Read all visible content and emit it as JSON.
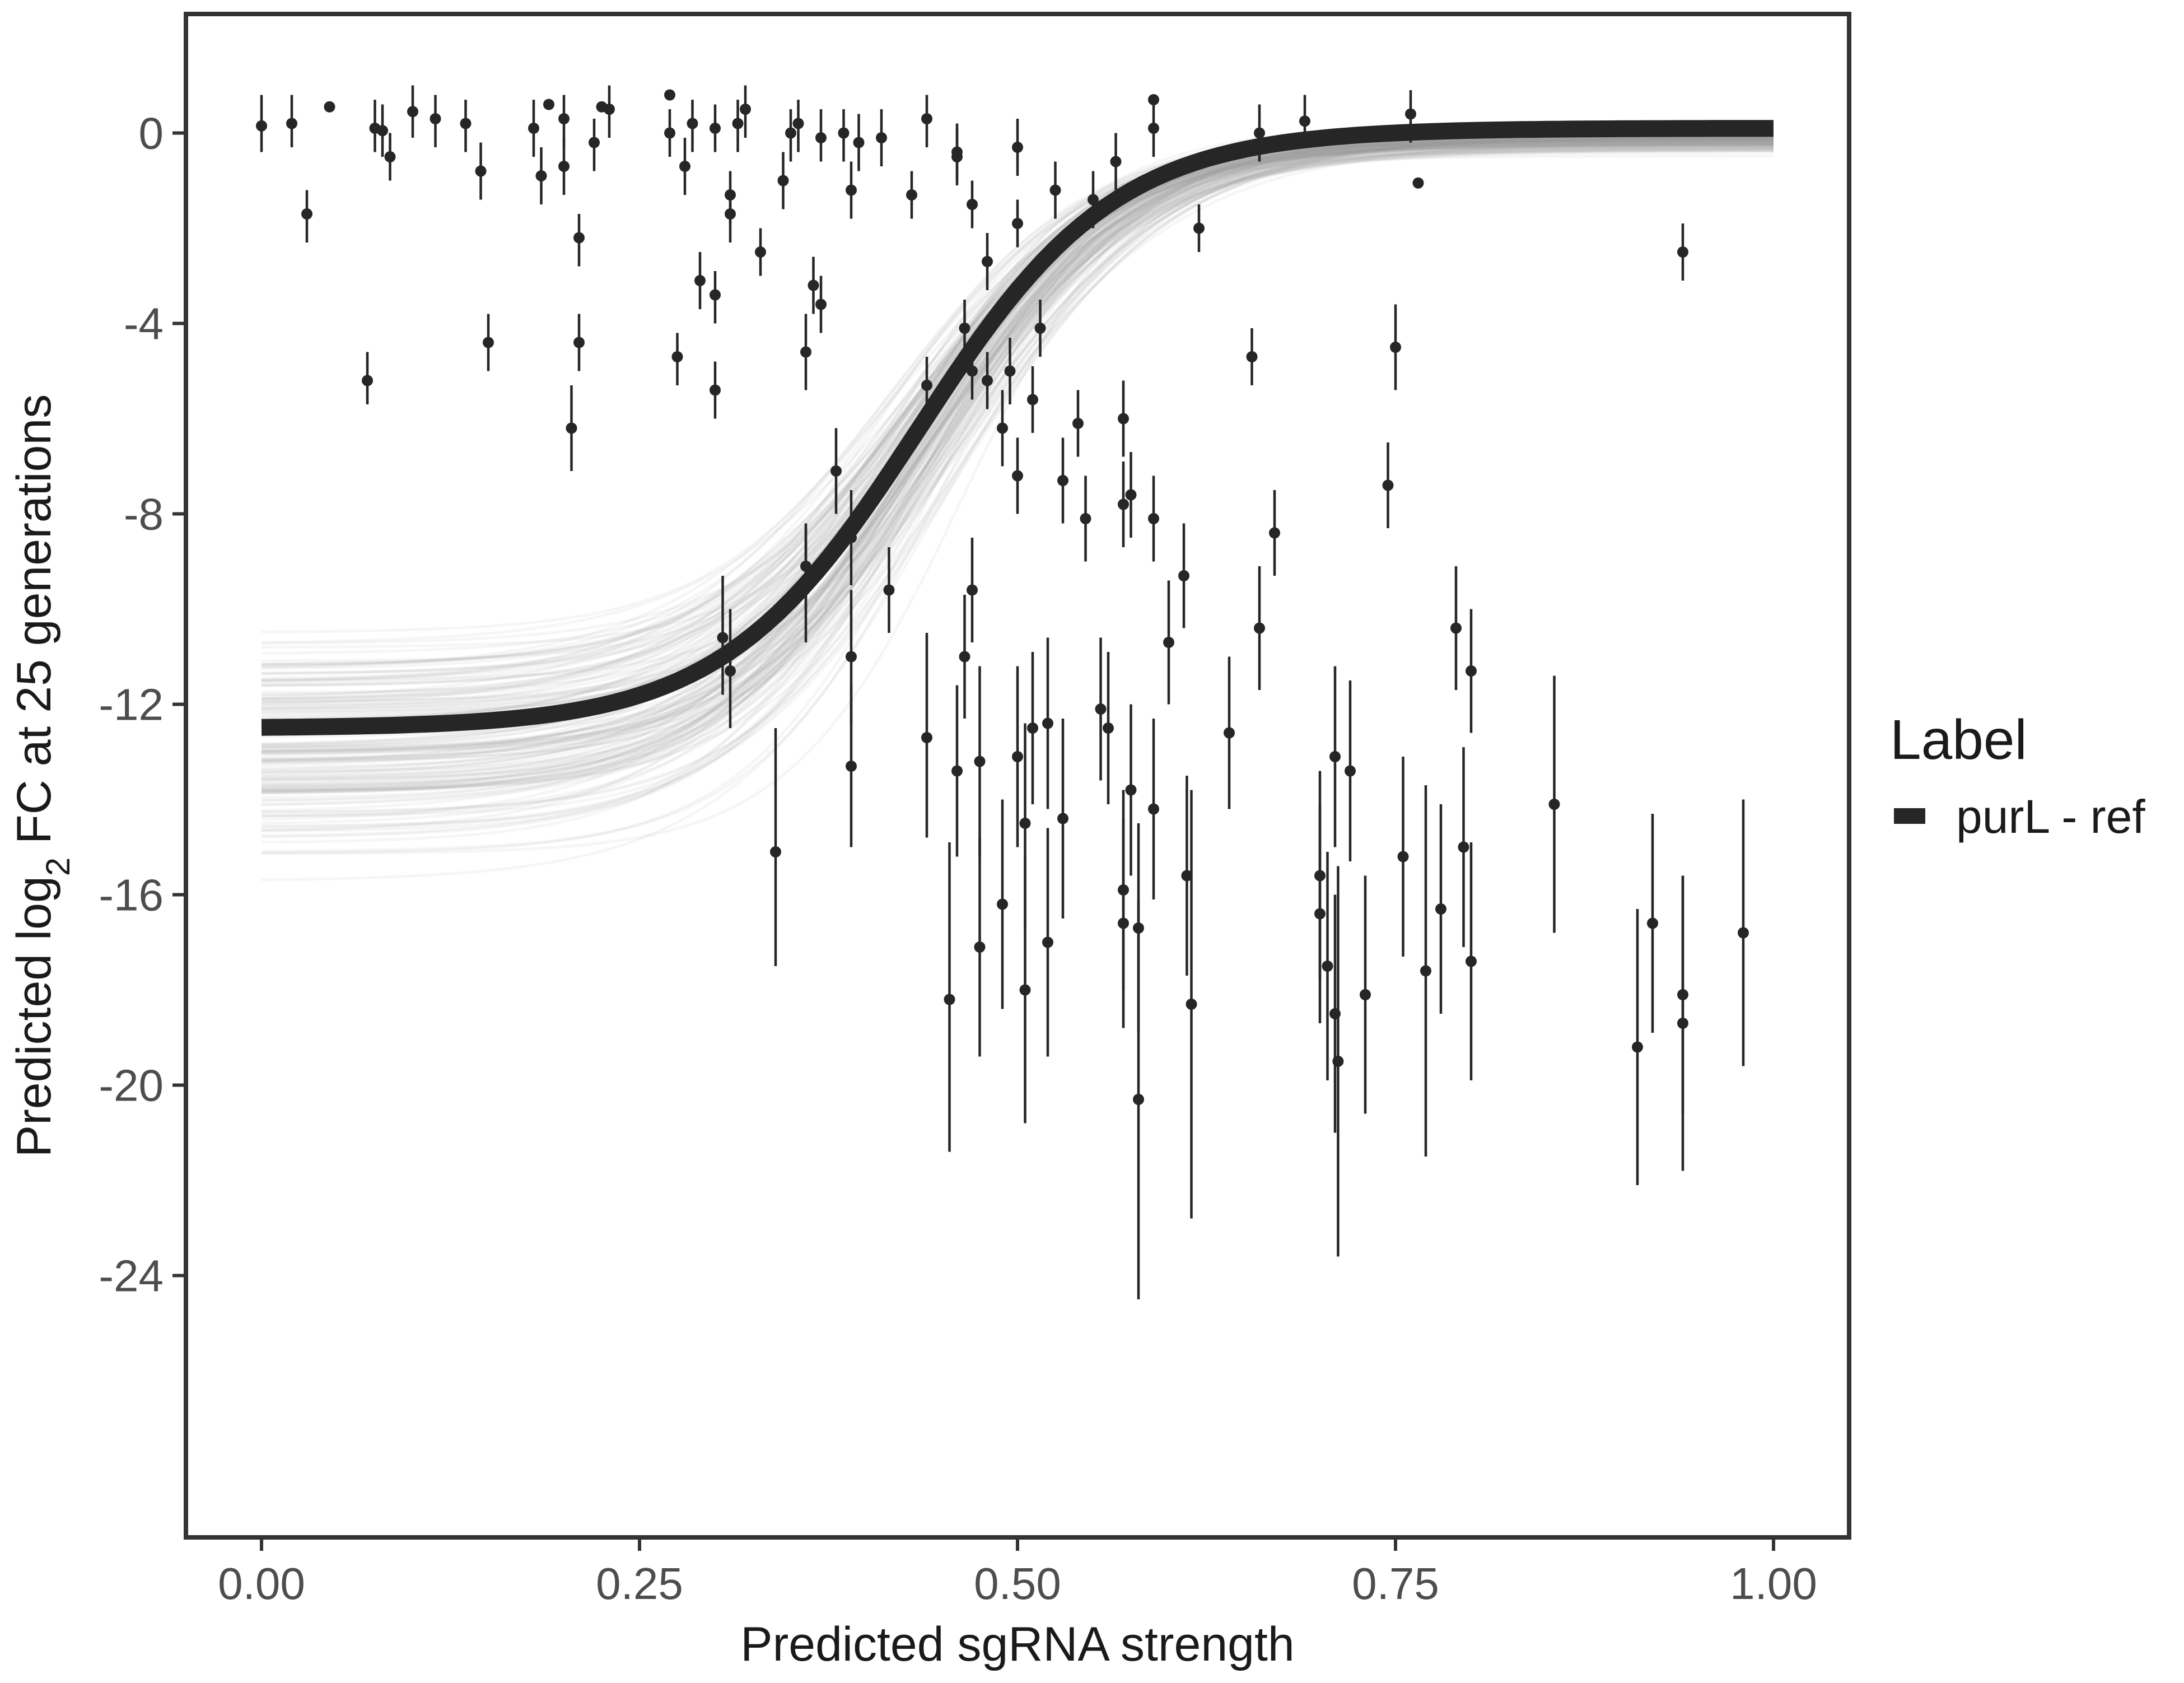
{
  "chart_data": {
    "type": "scatter",
    "title": "",
    "xlabel": "Predicted sgRNA strength",
    "ylabel_parts": [
      "Predicted  log",
      "2",
      " FC at 25 generations"
    ],
    "xlim": [
      -0.05,
      1.05
    ],
    "ylim": [
      -29.5,
      2.5
    ],
    "x_ticks": [
      0.0,
      0.25,
      0.5,
      0.75,
      1.0
    ],
    "x_tick_labels": [
      "0.00",
      "0.25",
      "0.50",
      "0.75",
      "1.00"
    ],
    "y_ticks": [
      0,
      -4,
      -8,
      -12,
      -16,
      -20,
      -24
    ],
    "y_tick_labels": [
      "0",
      "-4",
      "-8",
      "-12",
      "-16",
      "-20",
      "-24"
    ],
    "grid": false,
    "legend": {
      "title": "Label",
      "position": "right",
      "entries": [
        {
          "label": "purL - ref",
          "color": "#262626"
        }
      ]
    },
    "fit_curve": {
      "series_label": "purL - ref",
      "model": "logistic",
      "lower": -12.5,
      "upper": 0.1,
      "midpoint": 0.435,
      "scale": 0.065,
      "color": "#262626"
    },
    "posterior_band": {
      "draws": 160,
      "lower_range": [
        -16.3,
        -9.5
      ],
      "midpoint_range": [
        0.37,
        0.5
      ],
      "scale_range": [
        0.05,
        0.085
      ],
      "upper_range": [
        -0.6,
        0.35
      ],
      "color": "#9e9e9e"
    },
    "points": [
      {
        "x": 0.0,
        "y": 0.15,
        "lo": -0.4,
        "hi": 0.8
      },
      {
        "x": 0.02,
        "y": 0.2,
        "lo": -0.3,
        "hi": 0.8
      },
      {
        "x": 0.03,
        "y": -1.7,
        "lo": -2.3,
        "hi": -1.2
      },
      {
        "x": 0.045,
        "y": 0.55,
        "lo": 0.55,
        "hi": 0.55
      },
      {
        "x": 0.07,
        "y": -5.2,
        "lo": -5.7,
        "hi": -4.6
      },
      {
        "x": 0.075,
        "y": 0.1,
        "lo": -0.4,
        "hi": 0.7
      },
      {
        "x": 0.08,
        "y": 0.05,
        "lo": -0.5,
        "hi": 0.6
      },
      {
        "x": 0.085,
        "y": -0.5,
        "lo": -1.0,
        "hi": 0.0
      },
      {
        "x": 0.1,
        "y": 0.45,
        "lo": -0.1,
        "hi": 1.0
      },
      {
        "x": 0.115,
        "y": 0.3,
        "lo": -0.3,
        "hi": 0.8
      },
      {
        "x": 0.135,
        "y": 0.2,
        "lo": -0.4,
        "hi": 0.7
      },
      {
        "x": 0.145,
        "y": -0.8,
        "lo": -1.4,
        "hi": -0.2
      },
      {
        "x": 0.15,
        "y": -4.4,
        "lo": -5.0,
        "hi": -3.8
      },
      {
        "x": 0.18,
        "y": 0.1,
        "lo": -0.5,
        "hi": 0.7
      },
      {
        "x": 0.185,
        "y": -0.9,
        "lo": -1.5,
        "hi": -0.3
      },
      {
        "x": 0.19,
        "y": 0.6,
        "lo": 0.6,
        "hi": 0.6
      },
      {
        "x": 0.2,
        "y": -0.7,
        "lo": -1.3,
        "hi": -0.1
      },
      {
        "x": 0.2,
        "y": 0.3,
        "lo": -0.3,
        "hi": 0.8
      },
      {
        "x": 0.205,
        "y": -6.2,
        "lo": -7.1,
        "hi": -5.3
      },
      {
        "x": 0.21,
        "y": -4.4,
        "lo": -5.0,
        "hi": -3.8
      },
      {
        "x": 0.21,
        "y": -2.2,
        "lo": -2.8,
        "hi": -1.7
      },
      {
        "x": 0.22,
        "y": -0.2,
        "lo": -0.8,
        "hi": 0.3
      },
      {
        "x": 0.225,
        "y": 0.55,
        "lo": 0.55,
        "hi": 0.55
      },
      {
        "x": 0.23,
        "y": 0.5,
        "lo": -0.1,
        "hi": 1.0
      },
      {
        "x": 0.27,
        "y": 0.8,
        "lo": 0.8,
        "hi": 0.8
      },
      {
        "x": 0.27,
        "y": 0.0,
        "lo": -0.5,
        "hi": 0.5
      },
      {
        "x": 0.275,
        "y": -4.7,
        "lo": -5.3,
        "hi": -4.2
      },
      {
        "x": 0.28,
        "y": -0.7,
        "lo": -1.3,
        "hi": -0.1
      },
      {
        "x": 0.285,
        "y": 0.2,
        "lo": -0.4,
        "hi": 0.7
      },
      {
        "x": 0.29,
        "y": -3.1,
        "lo": -3.7,
        "hi": -2.5
      },
      {
        "x": 0.3,
        "y": 0.1,
        "lo": -0.4,
        "hi": 0.6
      },
      {
        "x": 0.3,
        "y": -5.4,
        "lo": -6.0,
        "hi": -4.8
      },
      {
        "x": 0.3,
        "y": -3.4,
        "lo": -4.0,
        "hi": -2.9
      },
      {
        "x": 0.31,
        "y": -1.3,
        "lo": -1.9,
        "hi": -0.8
      },
      {
        "x": 0.305,
        "y": -10.6,
        "lo": -11.8,
        "hi": -9.3
      },
      {
        "x": 0.31,
        "y": -11.3,
        "lo": -12.5,
        "hi": -10.0
      },
      {
        "x": 0.31,
        "y": -1.7,
        "lo": -2.3,
        "hi": -1.2
      },
      {
        "x": 0.315,
        "y": 0.2,
        "lo": -0.4,
        "hi": 0.7
      },
      {
        "x": 0.32,
        "y": 0.5,
        "lo": -0.1,
        "hi": 1.0
      },
      {
        "x": 0.33,
        "y": -2.5,
        "lo": -3.0,
        "hi": -2.0
      },
      {
        "x": 0.34,
        "y": -15.1,
        "lo": -17.5,
        "hi": -12.5
      },
      {
        "x": 0.345,
        "y": -1.0,
        "lo": -1.6,
        "hi": -0.4
      },
      {
        "x": 0.35,
        "y": 0.0,
        "lo": -0.6,
        "hi": 0.5
      },
      {
        "x": 0.355,
        "y": 0.2,
        "lo": -0.4,
        "hi": 0.7
      },
      {
        "x": 0.36,
        "y": -9.5,
        "lo": -10.7,
        "hi": -8.3
      },
      {
        "x": 0.36,
        "y": -9.1,
        "lo": -10.0,
        "hi": -8.2
      },
      {
        "x": 0.36,
        "y": -4.6,
        "lo": -5.4,
        "hi": -3.8
      },
      {
        "x": 0.365,
        "y": -3.2,
        "lo": -3.8,
        "hi": -2.6
      },
      {
        "x": 0.37,
        "y": -0.1,
        "lo": -0.6,
        "hi": 0.5
      },
      {
        "x": 0.37,
        "y": -3.6,
        "lo": -4.2,
        "hi": -3.0
      },
      {
        "x": 0.38,
        "y": -7.1,
        "lo": -8.0,
        "hi": -6.2
      },
      {
        "x": 0.385,
        "y": 0.0,
        "lo": -0.6,
        "hi": 0.5
      },
      {
        "x": 0.39,
        "y": -8.5,
        "lo": -9.5,
        "hi": -7.5
      },
      {
        "x": 0.39,
        "y": -11.0,
        "lo": -12.4,
        "hi": -9.6
      },
      {
        "x": 0.39,
        "y": -13.3,
        "lo": -15.0,
        "hi": -11.6
      },
      {
        "x": 0.39,
        "y": -1.2,
        "lo": -1.8,
        "hi": -0.6
      },
      {
        "x": 0.395,
        "y": -0.2,
        "lo": -0.8,
        "hi": 0.4
      },
      {
        "x": 0.41,
        "y": -0.1,
        "lo": -0.7,
        "hi": 0.5
      },
      {
        "x": 0.415,
        "y": -9.6,
        "lo": -10.5,
        "hi": -8.7
      },
      {
        "x": 0.43,
        "y": -1.3,
        "lo": -1.8,
        "hi": -0.8
      },
      {
        "x": 0.44,
        "y": 0.3,
        "lo": -0.3,
        "hi": 0.8
      },
      {
        "x": 0.44,
        "y": -12.7,
        "lo": -14.8,
        "hi": -10.5
      },
      {
        "x": 0.44,
        "y": -5.3,
        "lo": -5.9,
        "hi": -4.7
      },
      {
        "x": 0.455,
        "y": -18.2,
        "lo": -21.4,
        "hi": -14.9
      },
      {
        "x": 0.46,
        "y": -0.4,
        "lo": -1.0,
        "hi": 0.2
      },
      {
        "x": 0.46,
        "y": -0.5,
        "lo": -1.1,
        "hi": 0.1
      },
      {
        "x": 0.46,
        "y": -13.4,
        "lo": -15.2,
        "hi": -11.6
      },
      {
        "x": 0.465,
        "y": -11.0,
        "lo": -12.3,
        "hi": -9.7
      },
      {
        "x": 0.465,
        "y": -4.1,
        "lo": -4.7,
        "hi": -3.5
      },
      {
        "x": 0.47,
        "y": -5.0,
        "lo": -5.6,
        "hi": -4.4
      },
      {
        "x": 0.47,
        "y": -9.6,
        "lo": -10.7,
        "hi": -8.5
      },
      {
        "x": 0.47,
        "y": -1.5,
        "lo": -2.0,
        "hi": -1.0
      },
      {
        "x": 0.475,
        "y": -17.1,
        "lo": -19.4,
        "hi": -14.8
      },
      {
        "x": 0.475,
        "y": -13.2,
        "lo": -15.2,
        "hi": -11.2
      },
      {
        "x": 0.48,
        "y": -2.7,
        "lo": -3.3,
        "hi": -2.1
      },
      {
        "x": 0.48,
        "y": -5.2,
        "lo": -5.8,
        "hi": -4.6
      },
      {
        "x": 0.49,
        "y": -6.2,
        "lo": -7.0,
        "hi": -5.4
      },
      {
        "x": 0.49,
        "y": -16.2,
        "lo": -18.4,
        "hi": -14.0
      },
      {
        "x": 0.495,
        "y": -5.0,
        "lo": -5.7,
        "hi": -4.3
      },
      {
        "x": 0.5,
        "y": -1.9,
        "lo": -2.4,
        "hi": -1.4
      },
      {
        "x": 0.5,
        "y": -0.3,
        "lo": -0.9,
        "hi": 0.3
      },
      {
        "x": 0.5,
        "y": -7.2,
        "lo": -8.0,
        "hi": -6.4
      },
      {
        "x": 0.5,
        "y": -13.1,
        "lo": -15.0,
        "hi": -11.2
      },
      {
        "x": 0.505,
        "y": -18.0,
        "lo": -20.8,
        "hi": -15.2
      },
      {
        "x": 0.505,
        "y": -14.5,
        "lo": -16.7,
        "hi": -12.4
      },
      {
        "x": 0.51,
        "y": -5.6,
        "lo": -6.3,
        "hi": -4.9
      },
      {
        "x": 0.51,
        "y": -12.5,
        "lo": -14.1,
        "hi": -10.9
      },
      {
        "x": 0.515,
        "y": -4.1,
        "lo": -4.7,
        "hi": -3.5
      },
      {
        "x": 0.52,
        "y": -12.4,
        "lo": -14.2,
        "hi": -10.6
      },
      {
        "x": 0.52,
        "y": -17.0,
        "lo": -19.4,
        "hi": -14.6
      },
      {
        "x": 0.525,
        "y": -1.2,
        "lo": -1.8,
        "hi": -0.6
      },
      {
        "x": 0.53,
        "y": -7.3,
        "lo": -8.2,
        "hi": -6.4
      },
      {
        "x": 0.53,
        "y": -14.4,
        "lo": -16.5,
        "hi": -12.3
      },
      {
        "x": 0.54,
        "y": -6.1,
        "lo": -6.8,
        "hi": -5.4
      },
      {
        "x": 0.545,
        "y": -8.1,
        "lo": -9.0,
        "hi": -7.2
      },
      {
        "x": 0.55,
        "y": -1.4,
        "lo": -2.0,
        "hi": -0.8
      },
      {
        "x": 0.555,
        "y": -12.1,
        "lo": -13.6,
        "hi": -10.6
      },
      {
        "x": 0.56,
        "y": -12.5,
        "lo": -14.1,
        "hi": -10.9
      },
      {
        "x": 0.565,
        "y": -0.6,
        "lo": -1.2,
        "hi": 0.0
      },
      {
        "x": 0.57,
        "y": -6.0,
        "lo": -6.8,
        "hi": -5.2
      },
      {
        "x": 0.57,
        "y": -7.8,
        "lo": -8.7,
        "hi": -6.9
      },
      {
        "x": 0.57,
        "y": -16.6,
        "lo": -18.8,
        "hi": -14.4
      },
      {
        "x": 0.57,
        "y": -15.9,
        "lo": -18.0,
        "hi": -13.8
      },
      {
        "x": 0.575,
        "y": -13.8,
        "lo": -15.6,
        "hi": -12.0
      },
      {
        "x": 0.575,
        "y": -7.6,
        "lo": -8.5,
        "hi": -6.7
      },
      {
        "x": 0.58,
        "y": -20.3,
        "lo": -24.5,
        "hi": -16.1
      },
      {
        "x": 0.58,
        "y": -16.7,
        "lo": -18.9,
        "hi": -14.5
      },
      {
        "x": 0.59,
        "y": 0.7,
        "lo": 0.7,
        "hi": 0.7
      },
      {
        "x": 0.59,
        "y": 0.1,
        "lo": -0.5,
        "hi": 0.7
      },
      {
        "x": 0.59,
        "y": -14.2,
        "lo": -16.1,
        "hi": -12.3
      },
      {
        "x": 0.59,
        "y": -8.1,
        "lo": -9.0,
        "hi": -7.2
      },
      {
        "x": 0.6,
        "y": -10.7,
        "lo": -12.0,
        "hi": -9.4
      },
      {
        "x": 0.61,
        "y": -9.3,
        "lo": -10.4,
        "hi": -8.2
      },
      {
        "x": 0.612,
        "y": -15.6,
        "lo": -17.7,
        "hi": -13.5
      },
      {
        "x": 0.615,
        "y": -18.3,
        "lo": -22.8,
        "hi": -13.8
      },
      {
        "x": 0.62,
        "y": -2.0,
        "lo": -2.5,
        "hi": -1.5
      },
      {
        "x": 0.64,
        "y": -12.6,
        "lo": -14.2,
        "hi": -11.0
      },
      {
        "x": 0.655,
        "y": -4.7,
        "lo": -5.3,
        "hi": -4.1
      },
      {
        "x": 0.66,
        "y": -10.4,
        "lo": -11.7,
        "hi": -9.1
      },
      {
        "x": 0.66,
        "y": 0.0,
        "lo": -0.6,
        "hi": 0.6
      },
      {
        "x": 0.67,
        "y": -8.4,
        "lo": -9.3,
        "hi": -7.5
      },
      {
        "x": 0.69,
        "y": 0.25,
        "lo": -0.3,
        "hi": 0.8
      },
      {
        "x": 0.7,
        "y": -15.6,
        "lo": -17.8,
        "hi": -13.4
      },
      {
        "x": 0.7,
        "y": -16.4,
        "lo": -18.7,
        "hi": -14.1
      },
      {
        "x": 0.705,
        "y": -17.5,
        "lo": -19.9,
        "hi": -15.1
      },
      {
        "x": 0.71,
        "y": -13.1,
        "lo": -15.0,
        "hi": -11.2
      },
      {
        "x": 0.71,
        "y": -18.5,
        "lo": -21.0,
        "hi": -16.0
      },
      {
        "x": 0.712,
        "y": -19.5,
        "lo": -23.6,
        "hi": -15.4
      },
      {
        "x": 0.72,
        "y": -13.4,
        "lo": -15.3,
        "hi": -11.5
      },
      {
        "x": 0.73,
        "y": -18.1,
        "lo": -20.6,
        "hi": -15.6
      },
      {
        "x": 0.745,
        "y": -7.4,
        "lo": -8.3,
        "hi": -6.5
      },
      {
        "x": 0.75,
        "y": -4.5,
        "lo": -5.4,
        "hi": -3.6
      },
      {
        "x": 0.755,
        "y": -15.2,
        "lo": -17.3,
        "hi": -13.1
      },
      {
        "x": 0.76,
        "y": 0.4,
        "lo": -0.2,
        "hi": 0.9
      },
      {
        "x": 0.765,
        "y": -1.05,
        "lo": -1.05,
        "hi": -1.05
      },
      {
        "x": 0.77,
        "y": -17.6,
        "lo": -21.5,
        "hi": -13.7
      },
      {
        "x": 0.78,
        "y": -16.3,
        "lo": -18.5,
        "hi": -14.1
      },
      {
        "x": 0.79,
        "y": -10.4,
        "lo": -11.7,
        "hi": -9.1
      },
      {
        "x": 0.795,
        "y": -15.0,
        "lo": -17.1,
        "hi": -12.9
      },
      {
        "x": 0.8,
        "y": -11.3,
        "lo": -12.6,
        "hi": -10.0
      },
      {
        "x": 0.8,
        "y": -17.4,
        "lo": -19.9,
        "hi": -14.9
      },
      {
        "x": 0.855,
        "y": -14.1,
        "lo": -16.8,
        "hi": -11.4
      },
      {
        "x": 0.91,
        "y": -19.2,
        "lo": -22.1,
        "hi": -16.3
      },
      {
        "x": 0.92,
        "y": -16.6,
        "lo": -18.9,
        "hi": -14.3
      },
      {
        "x": 0.94,
        "y": -18.1,
        "lo": -20.6,
        "hi": -15.6
      },
      {
        "x": 0.94,
        "y": -18.7,
        "lo": -21.8,
        "hi": -15.6
      },
      {
        "x": 0.94,
        "y": -2.5,
        "lo": -3.1,
        "hi": -1.9
      },
      {
        "x": 0.98,
        "y": -16.8,
        "lo": -19.6,
        "hi": -14.0
      }
    ]
  }
}
